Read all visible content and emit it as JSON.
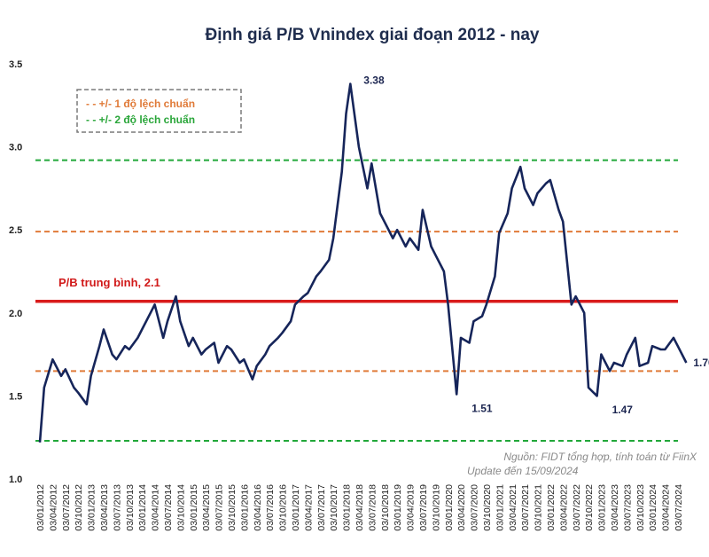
{
  "chart_data": {
    "type": "line",
    "title": "Định giá P/B Vnindex giai đoạn 2012 - nay",
    "xlabel": "",
    "ylabel": "",
    "ylim": [
      1.0,
      3.5
    ],
    "y_ticks": [
      "1.0",
      "1.5",
      "2.0",
      "2.5",
      "3.0",
      "3.5"
    ],
    "x_ticks": [
      "03/01/2012",
      "03/04/2012",
      "03/07/2012",
      "03/10/2012",
      "03/01/2013",
      "03/04/2013",
      "03/07/2013",
      "03/10/2013",
      "03/01/2014",
      "03/04/2014",
      "03/07/2014",
      "03/10/2014",
      "03/01/2015",
      "03/04/2015",
      "03/07/2015",
      "03/10/2015",
      "03/01/2016",
      "03/04/2016",
      "03/07/2016",
      "03/10/2016",
      "03/01/2017",
      "03/04/2017",
      "03/07/2017",
      "03/10/2017",
      "03/01/2018",
      "03/04/2018",
      "03/07/2018",
      "03/10/2018",
      "03/01/2019",
      "03/04/2019",
      "03/07/2019",
      "03/10/2019",
      "03/01/2020",
      "03/04/2020",
      "03/07/2020",
      "03/10/2020",
      "03/01/2021",
      "03/04/2021",
      "03/07/2021",
      "03/10/2021",
      "03/01/2022",
      "03/04/2022",
      "03/07/2022",
      "03/10/2022",
      "03/01/2023",
      "03/04/2023",
      "03/07/2023",
      "03/10/2023",
      "03/01/2024",
      "03/04/2024",
      "03/07/2024"
    ],
    "grid": false,
    "legend_position": "top-left",
    "series": [
      {
        "color": "#16255a",
        "x": [
          "03/01/2012",
          "03/02/2012",
          "03/04/2012",
          "03/06/2012",
          "03/07/2012",
          "03/09/2012",
          "03/10/2012",
          "03/12/2012",
          "03/01/2013",
          "03/03/2013",
          "03/04/2013",
          "03/06/2013",
          "03/07/2013",
          "03/09/2013",
          "03/10/2013",
          "03/12/2013",
          "03/01/2014",
          "03/03/2014",
          "03/04/2014",
          "03/06/2014",
          "03/07/2014",
          "03/09/2014",
          "03/10/2014",
          "03/12/2014",
          "03/01/2015",
          "03/03/2015",
          "03/04/2015",
          "03/06/2015",
          "03/07/2015",
          "03/09/2015",
          "03/10/2015",
          "03/12/2015",
          "03/01/2016",
          "03/03/2016",
          "03/04/2016",
          "03/06/2016",
          "03/07/2016",
          "03/09/2016",
          "03/10/2016",
          "03/12/2016",
          "03/01/2017",
          "03/03/2017",
          "03/04/2017",
          "03/06/2017",
          "03/07/2017",
          "03/09/2017",
          "03/10/2017",
          "03/12/2017",
          "03/01/2018",
          "03/02/2018",
          "03/04/2018",
          "03/06/2018",
          "03/07/2018",
          "03/09/2018",
          "03/10/2018",
          "03/12/2018",
          "03/01/2019",
          "03/03/2019",
          "03/04/2019",
          "03/06/2019",
          "03/07/2019",
          "03/09/2019",
          "03/10/2019",
          "03/12/2019",
          "03/01/2020",
          "03/03/2020",
          "03/04/2020",
          "03/06/2020",
          "03/07/2020",
          "03/09/2020",
          "03/10/2020",
          "03/12/2020",
          "03/01/2021",
          "03/03/2021",
          "03/04/2021",
          "03/06/2021",
          "03/07/2021",
          "03/09/2021",
          "03/10/2021",
          "03/12/2021",
          "03/01/2022",
          "03/03/2022",
          "03/04/2022",
          "03/06/2022",
          "03/07/2022",
          "03/09/2022",
          "03/10/2022",
          "03/12/2022",
          "03/01/2023",
          "03/03/2023",
          "03/04/2023",
          "03/06/2023",
          "03/07/2023",
          "03/09/2023",
          "03/10/2023",
          "03/12/2023",
          "03/01/2024",
          "03/03/2024",
          "03/04/2024",
          "03/06/2024",
          "03/07/2024",
          "03/09/2024"
        ],
        "values": [
          1.22,
          1.55,
          1.72,
          1.62,
          1.66,
          1.55,
          1.52,
          1.45,
          1.62,
          1.8,
          1.9,
          1.75,
          1.72,
          1.8,
          1.78,
          1.85,
          1.9,
          2.0,
          2.05,
          1.85,
          1.95,
          2.1,
          1.95,
          1.8,
          1.85,
          1.75,
          1.78,
          1.82,
          1.7,
          1.8,
          1.78,
          1.7,
          1.72,
          1.6,
          1.68,
          1.75,
          1.8,
          1.85,
          1.88,
          1.95,
          2.05,
          2.1,
          2.12,
          2.22,
          2.25,
          2.32,
          2.45,
          2.85,
          3.2,
          3.38,
          3.0,
          2.75,
          2.9,
          2.6,
          2.55,
          2.45,
          2.5,
          2.4,
          2.45,
          2.38,
          2.62,
          2.4,
          2.35,
          2.25,
          2.05,
          1.51,
          1.85,
          1.82,
          1.95,
          1.98,
          2.05,
          2.22,
          2.48,
          2.6,
          2.75,
          2.88,
          2.75,
          2.65,
          2.72,
          2.78,
          2.8,
          2.62,
          2.55,
          2.05,
          2.1,
          2.0,
          1.55,
          1.5,
          1.75,
          1.65,
          1.7,
          1.68,
          1.75,
          1.85,
          1.68,
          1.7,
          1.8,
          1.78,
          1.78,
          1.85,
          1.8,
          1.7
        ]
      }
    ],
    "reference_lines": [
      {
        "name": "P/B trung bình, 2.1",
        "value": 2.07,
        "color": "#d91c1c",
        "style": "solid"
      },
      {
        "value": 2.92,
        "color": "#22a83a",
        "style": "dashed"
      },
      {
        "value": 2.49,
        "color": "#e07b39",
        "style": "dashed"
      },
      {
        "value": 1.65,
        "color": "#e07b39",
        "style": "dashed"
      },
      {
        "value": 1.23,
        "color": "#22a83a",
        "style": "dashed"
      }
    ],
    "annotations": [
      {
        "text": "3.38",
        "x": "03/02/2018",
        "y": 3.38
      },
      {
        "text": "1.51",
        "x": "03/03/2020",
        "y": 1.51
      },
      {
        "text": "1.47",
        "x": "03/12/2022",
        "y": 1.47
      },
      {
        "text": "1.70",
        "x": "03/09/2024",
        "y": 1.7
      }
    ],
    "legend": [
      {
        "label": "- - +/- 1 độ lệch chuẩn",
        "color": "#e07b39"
      },
      {
        "label": "- - +/- 2 độ lệch chuẩn",
        "color": "#2aa63a"
      }
    ],
    "source_lines": [
      "Nguồn: FIDT tổng hợp, tính toán từ FiinX",
      "Update đến 15/09/2024"
    ]
  }
}
